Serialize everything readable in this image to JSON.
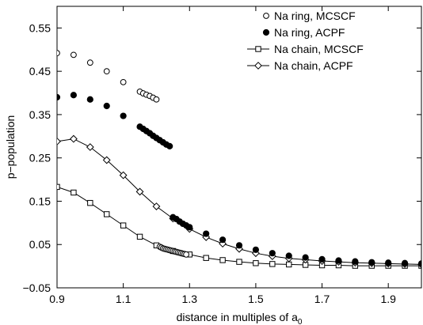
{
  "chart_data": {
    "type": "scatter",
    "title": "",
    "xlabel": "distance in multiples of a",
    "xlabel_subscript": "0",
    "ylabel": "p−population",
    "xlim": [
      0.9,
      2.0
    ],
    "ylim": [
      -0.05,
      0.6
    ],
    "x_ticks": [
      0.9,
      1.1,
      1.3,
      1.5,
      1.7,
      1.9
    ],
    "x_tick_labels": [
      "0.9",
      "1.1",
      "1.3",
      "1.5",
      "1.7",
      "1.9"
    ],
    "y_ticks": [
      -0.05,
      0.05,
      0.15,
      0.25,
      0.35,
      0.45,
      0.55
    ],
    "y_tick_labels": [
      "−0.05",
      "0.05",
      "0.15",
      "0.25",
      "0.35",
      "0.45",
      "0.55"
    ],
    "grid": false,
    "legend_position": "top-right",
    "series": [
      {
        "name": "Na ring, MCSCF",
        "marker": "open-circle",
        "line": false,
        "x": [
          0.9,
          0.95,
          1.0,
          1.05,
          1.1,
          1.15,
          1.16,
          1.17,
          1.18,
          1.19,
          1.2
        ],
        "y": [
          0.492,
          0.488,
          0.47,
          0.45,
          0.425,
          0.403,
          0.399,
          0.396,
          0.393,
          0.389,
          0.385
        ]
      },
      {
        "name": "Na ring, ACPF",
        "marker": "filled-circle",
        "line": false,
        "x": [
          0.9,
          0.95,
          1.0,
          1.05,
          1.1,
          1.15,
          1.16,
          1.17,
          1.18,
          1.19,
          1.2,
          1.21,
          1.22,
          1.23,
          1.24,
          1.25,
          1.26,
          1.27,
          1.28,
          1.29,
          1.3,
          1.35,
          1.4,
          1.45,
          1.5,
          1.55,
          1.6,
          1.65,
          1.7,
          1.75,
          1.8,
          1.85,
          1.9,
          1.95,
          2.0
        ],
        "y": [
          0.39,
          0.395,
          0.385,
          0.37,
          0.347,
          0.322,
          0.317,
          0.312,
          0.307,
          0.301,
          0.296,
          0.291,
          0.286,
          0.281,
          0.277,
          0.113,
          0.109,
          0.103,
          0.098,
          0.094,
          0.09,
          0.075,
          0.061,
          0.048,
          0.038,
          0.03,
          0.024,
          0.02,
          0.016,
          0.013,
          0.011,
          0.009,
          0.008,
          0.007,
          0.006
        ]
      },
      {
        "name": "Na chain, MCSCF",
        "marker": "open-square",
        "line": true,
        "x": [
          0.9,
          0.95,
          1.0,
          1.05,
          1.1,
          1.15,
          1.2,
          1.25,
          1.3,
          1.35,
          1.4,
          1.45,
          1.5,
          1.55,
          1.6,
          1.65,
          1.7,
          1.75,
          1.8,
          1.85,
          1.9,
          1.95,
          2.0
        ],
        "y": [
          0.183,
          0.17,
          0.146,
          0.12,
          0.094,
          0.068,
          0.048,
          0.035,
          0.027,
          0.019,
          0.014,
          0.01,
          0.007,
          0.005,
          0.004,
          0.003,
          0.002,
          0.002,
          0.001,
          0.001,
          0.001,
          0.001,
          0.001
        ]
      },
      {
        "name": "Na chain, ACPF",
        "marker": "open-diamond",
        "line": true,
        "x": [
          0.9,
          0.95,
          1.0,
          1.05,
          1.1,
          1.15,
          1.2,
          1.25,
          1.3,
          1.35,
          1.4,
          1.45,
          1.5,
          1.55,
          1.6,
          1.65,
          1.7,
          1.75,
          1.8,
          1.85,
          1.9,
          1.95,
          2.0
        ],
        "y": [
          0.288,
          0.294,
          0.275,
          0.245,
          0.21,
          0.172,
          0.138,
          0.11,
          0.086,
          0.067,
          0.052,
          0.04,
          0.03,
          0.023,
          0.018,
          0.015,
          0.012,
          0.01,
          0.008,
          0.007,
          0.006,
          0.005,
          0.004
        ]
      },
      {
        "name": "",
        "marker": "open-circle",
        "line": false,
        "x": [
          1.21,
          1.215,
          1.22,
          1.225,
          1.23,
          1.235,
          1.24,
          1.245,
          1.25,
          1.255,
          1.26,
          1.265,
          1.27,
          1.275,
          1.28,
          1.285,
          1.29
        ],
        "y": [
          0.045,
          0.043,
          0.041,
          0.04,
          0.039,
          0.038,
          0.037,
          0.036,
          0.035,
          0.034,
          0.033,
          0.032,
          0.031,
          0.03,
          0.029,
          0.028,
          0.027
        ]
      }
    ]
  }
}
